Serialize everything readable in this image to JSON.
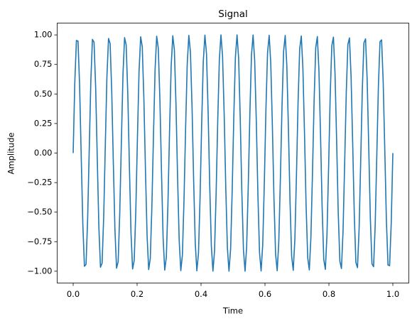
{
  "chart_data": {
    "type": "line",
    "title": "Signal",
    "x_label": "Time",
    "y_label": "Amplitude",
    "xlim": [
      -0.05,
      1.05
    ],
    "ylim": [
      -1.1,
      1.1
    ],
    "xticks": [
      {
        "value": 0,
        "label": "0.0"
      },
      0.2,
      0.4,
      0.6,
      0.8,
      {
        "value": 1,
        "label": "1.0"
      }
    ],
    "yticks": [
      {
        "value": -1,
        "label": "−1.00"
      },
      {
        "value": -0.75,
        "label": "−0.75"
      },
      {
        "value": -0.5,
        "label": "−0.50"
      },
      {
        "value": -0.25,
        "label": "−0.25"
      },
      {
        "value": 0,
        "label": "0.00"
      },
      {
        "value": 0.25,
        "label": "0.25"
      },
      {
        "value": 0.5,
        "label": "0.50"
      },
      {
        "value": 0.75,
        "label": "0.75"
      },
      {
        "value": 1,
        "label": "1.00"
      }
    ],
    "grid": false,
    "x": [
      0,
      0.005,
      0.0101,
      0.0151,
      0.0201,
      0.0251,
      0.0302,
      0.0352,
      0.0402,
      0.0452,
      0.0503,
      0.0553,
      0.0603,
      0.0653,
      0.0704,
      0.0754,
      0.0804,
      0.0854,
      0.0905,
      0.0955,
      0.1005,
      0.1055,
      0.1106,
      0.1156,
      0.1206,
      0.1256,
      0.1307,
      0.1357,
      0.1407,
      0.1457,
      0.1508,
      0.1558,
      0.1608,
      0.1658,
      0.1709,
      0.1759,
      0.1809,
      0.1859,
      0.191,
      0.196,
      0.201,
      0.206,
      0.2111,
      0.2161,
      0.2211,
      0.2261,
      0.2312,
      0.2362,
      0.2412,
      0.2462,
      0.2513,
      0.2563,
      0.2613,
      0.2663,
      0.2714,
      0.2764,
      0.2814,
      0.2864,
      0.2915,
      0.2965,
      0.3015,
      0.3065,
      0.3116,
      0.3166,
      0.3216,
      0.3266,
      0.3317,
      0.3367,
      0.3417,
      0.3467,
      0.3518,
      0.3568,
      0.3618,
      0.3668,
      0.3719,
      0.3769,
      0.3819,
      0.3869,
      0.392,
      0.397,
      0.402,
      0.407,
      0.4121,
      0.4171,
      0.4221,
      0.4271,
      0.4322,
      0.4372,
      0.4422,
      0.4472,
      0.4523,
      0.4573,
      0.4623,
      0.4673,
      0.4724,
      0.4774,
      0.4824,
      0.4874,
      0.4925,
      0.4975,
      0.5025,
      0.5075,
      0.5126,
      0.5176,
      0.5226,
      0.5276,
      0.5327,
      0.5377,
      0.5427,
      0.5477,
      0.5528,
      0.5578,
      0.5628,
      0.5678,
      0.5729,
      0.5779,
      0.5829,
      0.5879,
      0.593,
      0.598,
      0.603,
      0.608,
      0.6131,
      0.6181,
      0.6231,
      0.6281,
      0.6332,
      0.6382,
      0.6432,
      0.6482,
      0.6533,
      0.6583,
      0.6633,
      0.6683,
      0.6734,
      0.6784,
      0.6834,
      0.6884,
      0.6935,
      0.6985,
      0.7035,
      0.7085,
      0.7136,
      0.7186,
      0.7236,
      0.7286,
      0.7337,
      0.7387,
      0.7437,
      0.7487,
      0.7538,
      0.7588,
      0.7638,
      0.7688,
      0.7739,
      0.7789,
      0.7839,
      0.7889,
      0.794,
      0.799,
      0.804,
      0.809,
      0.8141,
      0.8191,
      0.8241,
      0.8291,
      0.8342,
      0.8392,
      0.8442,
      0.8492,
      0.8543,
      0.8593,
      0.8643,
      0.8693,
      0.8744,
      0.8794,
      0.8844,
      0.8894,
      0.8945,
      0.8995,
      0.9045,
      0.9095,
      0.9146,
      0.9196,
      0.9246,
      0.9296,
      0.9347,
      0.9397,
      0.9447,
      0.9497,
      0.9548,
      0.9598,
      0.9648,
      0.9698,
      0.9749,
      0.9799,
      0.9849,
      0.9899,
      0.995,
      1
    ],
    "series": [
      {
        "color": "#1f77b4",
        "values": [
          0,
          0.59,
          0.953,
          0.948,
          0.577,
          -0.016,
          -0.603,
          -0.958,
          -0.943,
          -0.565,
          0.032,
          0.615,
          0.962,
          0.938,
          0.551,
          -0.047,
          -0.628,
          -0.966,
          -0.932,
          -0.538,
          0.063,
          0.64,
          0.97,
          0.926,
          0.525,
          -0.079,
          -0.652,
          -0.974,
          -0.92,
          -0.511,
          0.095,
          0.664,
          0.977,
          0.914,
          0.498,
          -0.11,
          -0.676,
          -0.981,
          -0.907,
          -0.484,
          0.126,
          0.687,
          0.984,
          0.9,
          0.47,
          -0.142,
          -0.699,
          -0.986,
          -0.893,
          -0.456,
          0.157,
          0.71,
          0.989,
          0.886,
          0.442,
          -0.173,
          -0.721,
          -0.991,
          -0.879,
          -0.428,
          0.188,
          0.732,
          0.993,
          0.871,
          0.414,
          -0.204,
          -0.742,
          -0.995,
          -0.863,
          -0.399,
          0.219,
          0.753,
          0.996,
          0.855,
          0.385,
          -0.235,
          -0.763,
          -0.997,
          -0.847,
          -0.37,
          0.25,
          0.773,
          0.998,
          0.839,
          0.355,
          -0.265,
          -0.783,
          -0.999,
          -0.83,
          -0.34,
          0.28,
          0.793,
          1,
          0.821,
          0.326,
          -0.295,
          -0.802,
          -1,
          -0.812,
          -0.31,
          0.31,
          0.812,
          1,
          0.802,
          0.295,
          -0.326,
          -0.821,
          -1,
          -0.793,
          -0.28,
          0.34,
          0.83,
          0.999,
          0.783,
          0.265,
          -0.355,
          -0.839,
          -0.998,
          -0.773,
          -0.25,
          0.37,
          0.847,
          0.997,
          0.763,
          0.235,
          -0.385,
          -0.855,
          -0.996,
          -0.753,
          -0.219,
          0.399,
          0.863,
          0.995,
          0.742,
          0.204,
          -0.414,
          -0.871,
          -0.993,
          -0.732,
          -0.188,
          0.428,
          0.879,
          0.991,
          0.721,
          0.173,
          -0.442,
          -0.886,
          -0.989,
          -0.71,
          -0.157,
          0.456,
          0.893,
          0.986,
          0.699,
          0.142,
          -0.47,
          -0.9,
          -0.984,
          -0.687,
          -0.126,
          0.484,
          0.907,
          0.981,
          0.676,
          0.11,
          -0.498,
          -0.914,
          -0.977,
          -0.664,
          -0.095,
          0.511,
          0.92,
          0.974,
          0.652,
          0.079,
          -0.525,
          -0.926,
          -0.97,
          -0.64,
          -0.063,
          0.538,
          0.932,
          0.966,
          0.628,
          0.047,
          -0.551,
          -0.938,
          -0.962,
          -0.615,
          -0.032,
          0.565,
          0.943,
          0.958,
          0.603,
          0.016,
          -0.577,
          -0.948,
          -0.953,
          -0.59,
          0
        ]
      }
    ]
  }
}
